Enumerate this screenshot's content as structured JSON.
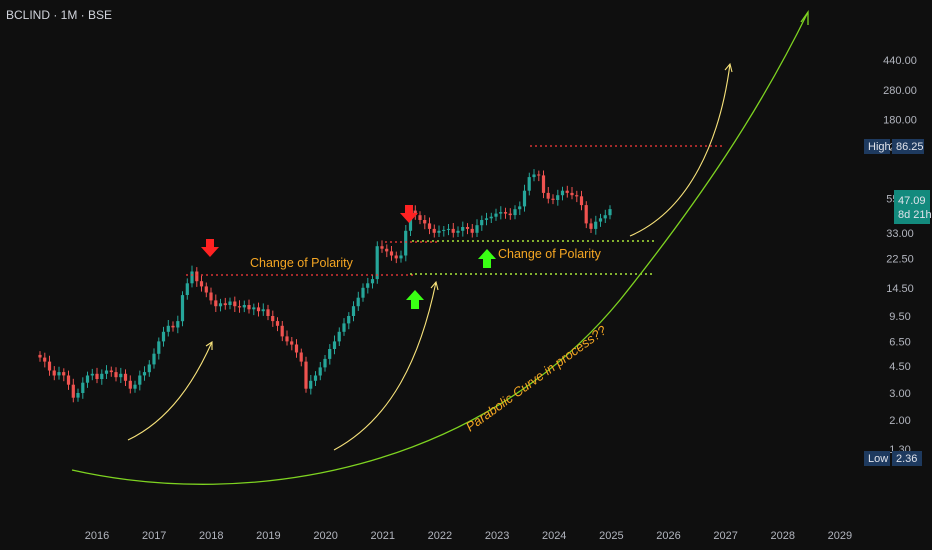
{
  "header": {
    "symbol_title": "BCLIND · 1M · BSE"
  },
  "colors": {
    "background": "#0f0f0f",
    "up": "#26a69a",
    "down": "#ef5350",
    "annotation": "#f5a623",
    "parabola": "#7ed321",
    "arrow_curve": "#f7e27a",
    "support": "#a8e63a",
    "resistance": "#ff3b3b"
  },
  "chart_data": {
    "type": "candlestick",
    "scale": "log",
    "ylim": [
      1.1,
      440
    ],
    "x_tick_labels": [
      "2016",
      "2017",
      "2018",
      "2019",
      "2020",
      "2021",
      "2022",
      "2023",
      "2024",
      "2025",
      "2026",
      "2027",
      "2028",
      "2029"
    ],
    "y_tick_labels": [
      "440.00",
      "280.00",
      "180.00",
      "120.00",
      "55.00",
      "33.00",
      "22.50",
      "14.50",
      "9.50",
      "6.50",
      "4.50",
      "3.00",
      "2.00",
      "1.30"
    ],
    "closes_monthly_approx": [
      {
        "period": "2015-07..2015-12",
        "values": [
          5.1,
          4.8,
          4.2,
          3.9,
          4.1,
          3.9
        ]
      },
      {
        "period": "2016",
        "values": [
          3.4,
          2.8,
          3.0,
          3.5,
          3.9,
          4.0,
          3.7,
          4.0,
          4.2,
          4.1,
          3.8,
          4.0
        ]
      },
      {
        "period": "2017",
        "values": [
          3.6,
          3.2,
          3.4,
          3.9,
          4.1,
          4.6,
          5.4,
          6.5,
          7.5,
          8.2,
          8.0,
          8.8
        ]
      },
      {
        "period": "2018",
        "values": [
          13.0,
          15.5,
          18.5,
          16.0,
          14.8,
          13.5,
          12.0,
          11.0,
          11.5,
          11.2,
          11.8,
          11.0
        ]
      },
      {
        "period": "2019",
        "values": [
          10.8,
          11.2,
          10.5,
          10.8,
          10.2,
          10.5,
          9.5,
          8.8,
          8.2,
          7.0,
          6.5,
          6.2
        ]
      },
      {
        "period": "2020",
        "values": [
          5.5,
          4.8,
          3.2,
          3.6,
          3.9,
          4.4,
          5.0,
          5.8,
          6.5,
          7.5,
          8.5,
          9.5
        ]
      },
      {
        "period": "2021",
        "values": [
          11.0,
          12.5,
          14.5,
          15.5,
          16.5,
          27.0,
          26.0,
          25.0,
          23.5,
          22.5,
          23.5,
          34.0
        ]
      },
      {
        "period": "2022",
        "values": [
          46.0,
          43.0,
          40.0,
          38.0,
          35.0,
          33.0,
          34.0,
          34.5,
          35.0,
          33.0,
          34.0,
          36.0
        ]
      },
      {
        "period": "2023",
        "values": [
          35.0,
          33.0,
          37.0,
          40.0,
          41.0,
          42.0,
          44.0,
          45.0,
          44.0,
          43.0,
          47.0,
          49.0
        ]
      },
      {
        "period": "2024",
        "values": [
          62.0,
          76.0,
          79.0,
          78.0,
          60.0,
          55.0,
          54.0,
          58.0,
          62.0,
          60.0,
          58.0,
          57.0
        ]
      },
      {
        "period": "2025-01..2025-07",
        "values": [
          50.0,
          38.0,
          35.0,
          39.0,
          41.0,
          43.0,
          47.09
        ]
      }
    ],
    "high": {
      "label": "High",
      "value": "86.25"
    },
    "low": {
      "label": "Low",
      "value": "2.36"
    },
    "last": {
      "value": "47.09",
      "countdown": "8d 21h"
    },
    "annotations": [
      {
        "id": "polarity-1",
        "text": "Change of Polarity"
      },
      {
        "id": "polarity-2",
        "text": "Change of Polarity"
      },
      {
        "id": "parabola",
        "text": "Parabolic Curve in process??"
      }
    ]
  }
}
